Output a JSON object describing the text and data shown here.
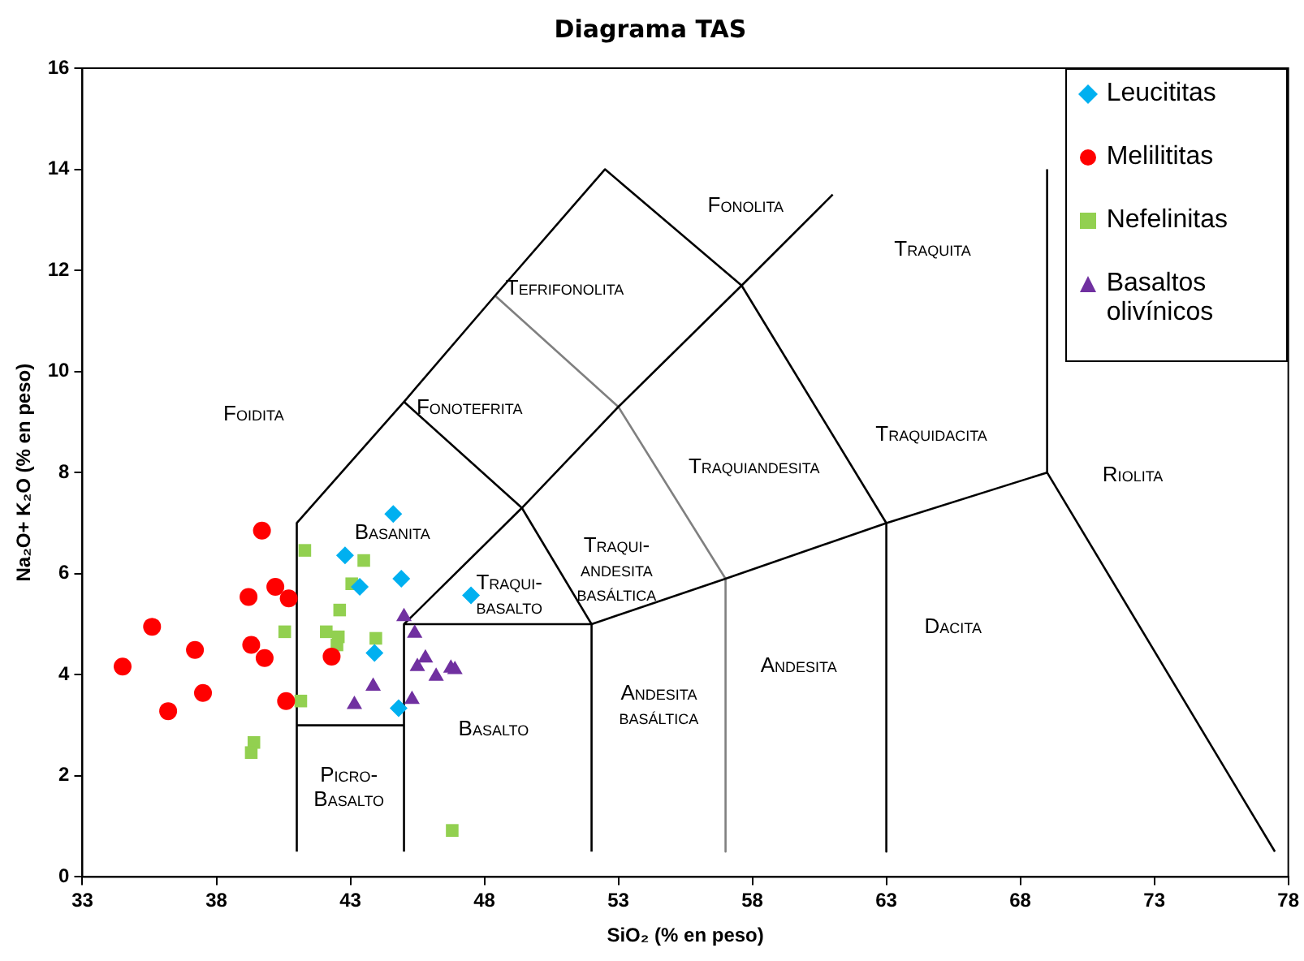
{
  "chart_data": {
    "type": "scatter",
    "title": "Diagrama TAS",
    "xlabel": "SiO₂ (% en peso)",
    "ylabel": "Na₂O+ K₂O (% en peso)",
    "xlim": [
      33,
      78
    ],
    "xticks": [
      33,
      38,
      43,
      48,
      53,
      58,
      63,
      68,
      73,
      78
    ],
    "ylim": [
      0,
      16
    ],
    "yticks": [
      0,
      2,
      4,
      6,
      8,
      10,
      12,
      14,
      16
    ],
    "grid": false,
    "legend": "top right",
    "series": [
      {
        "name": "Leucititas",
        "marker": "diamond",
        "color": "#00b0f0",
        "x": [
          44.6,
          42.8,
          43.35,
          44.9,
          47.5,
          43.9,
          44.8
        ],
        "values": [
          7.18,
          6.36,
          5.74,
          5.9,
          5.57,
          4.43,
          3.34
        ]
      },
      {
        "name": "Melilititas",
        "marker": "circle",
        "color": "#ff0000",
        "x": [
          39.7,
          40.2,
          39.2,
          40.7,
          35.6,
          37.2,
          39.3,
          39.8,
          42.3,
          34.5,
          37.5,
          40.6,
          36.2
        ],
        "values": [
          6.85,
          5.74,
          5.54,
          5.51,
          4.95,
          4.49,
          4.59,
          4.33,
          4.36,
          4.16,
          3.64,
          3.48,
          3.28
        ]
      },
      {
        "name": "Nefelinitas",
        "marker": "square",
        "color": "#92d050",
        "x": [
          41.3,
          43.5,
          43.05,
          42.6,
          40.55,
          42.1,
          42.55,
          42.5,
          43.95,
          41.15,
          39.4,
          39.3,
          46.8
        ],
        "values": [
          6.46,
          6.26,
          5.8,
          5.28,
          4.85,
          4.85,
          4.75,
          4.59,
          4.72,
          3.48,
          2.66,
          2.46,
          0.92
        ]
      },
      {
        "name": "Basaltos olivínicos",
        "marker": "triangle",
        "color": "#7030a0",
        "x": [
          45.0,
          45.4,
          45.8,
          45.5,
          46.2,
          46.75,
          46.9,
          43.85,
          43.15,
          45.3
        ],
        "values": [
          5.15,
          4.82,
          4.33,
          4.16,
          3.97,
          4.13,
          4.1,
          3.77,
          3.41,
          3.51
        ]
      },
      {
        "type": "line",
        "marker": "none",
        "color": "#000000",
        "x": [
          41,
          41,
          45,
          48.4,
          52.5,
          57.6,
          63,
          63
        ],
        "values": [
          0.5,
          7,
          9.4,
          11.5,
          14,
          11.7,
          7,
          0.5
        ]
      },
      {
        "type": "line",
        "marker": "none",
        "color": "#000000",
        "x": [
          41,
          45
        ],
        "values": [
          3,
          3
        ]
      },
      {
        "type": "line",
        "marker": "none",
        "color": "#000000",
        "x": [
          45,
          45,
          49.4,
          53,
          57.6,
          61
        ],
        "values": [
          0.5,
          5,
          7.3,
          9.3,
          11.7,
          13.5
        ]
      },
      {
        "type": "line",
        "marker": "none",
        "color": "#000000",
        "x": [
          45,
          52,
          57,
          63,
          69,
          77.5
        ],
        "values": [
          5,
          5,
          5.9,
          7,
          8,
          0.5
        ]
      },
      {
        "type": "line",
        "marker": "none",
        "color": "#000000",
        "x": [
          52,
          52,
          49.4,
          45
        ],
        "values": [
          0.5,
          5,
          7.3,
          9.4
        ]
      },
      {
        "type": "line",
        "marker": "none",
        "color": "#000000",
        "x": [
          69,
          69
        ],
        "values": [
          8,
          14
        ]
      },
      {
        "type": "line",
        "marker": "none",
        "color": "#808080",
        "x": [
          48.4,
          53,
          57,
          57
        ],
        "values": [
          11.5,
          9.3,
          5.9,
          0.5
        ]
      }
    ],
    "annotations": [
      "Foidita",
      "Basanita",
      "Fonotefrita",
      "Tefrifonolita",
      "Fonolita",
      "Traquita",
      "Traquidacita",
      "Riolita",
      "Traquiandesita",
      "Traqui-\nandesita\nbasáltica",
      "Traqui-\nbasalto",
      "Basalto",
      "Picro-\nBasalto",
      "Andesita\nbasáltica",
      "Andesita",
      "Dacita"
    ]
  }
}
